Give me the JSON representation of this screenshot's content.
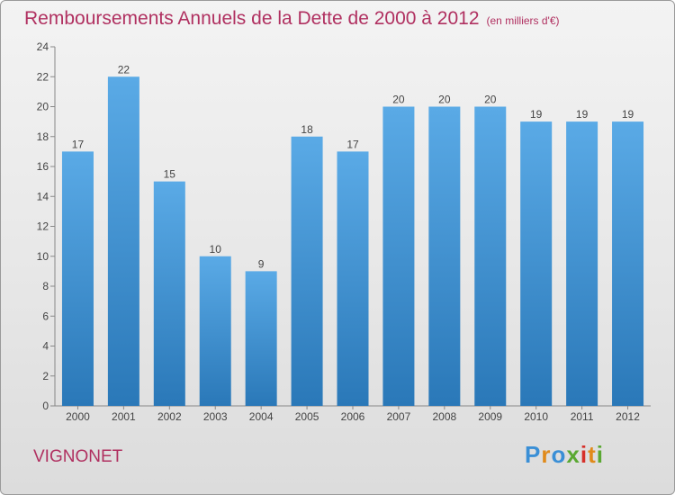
{
  "title": "Remboursements Annuels de la Dette de 2000 à 2012",
  "unit_note": "(en milliers d'€)",
  "town": "VIGNONET",
  "logo": {
    "text": "Proxiti",
    "colors": [
      "#3a8fd6",
      "#e08a1a",
      "#3a8fd6",
      "#5aa832",
      "#d6302a",
      "#e08a1a",
      "#5aa832"
    ]
  },
  "colors": {
    "bar_light": "#5aaae6",
    "bar_dark": "#2a78b8",
    "title": "#b03060"
  },
  "chart_data": {
    "type": "bar",
    "title": "Remboursements Annuels de la Dette de 2000 à 2012",
    "categories": [
      "2000",
      "2001",
      "2002",
      "2003",
      "2004",
      "2005",
      "2006",
      "2007",
      "2008",
      "2009",
      "2010",
      "2011",
      "2012"
    ],
    "values": [
      17,
      22,
      15,
      10,
      9,
      18,
      17,
      20,
      20,
      20,
      19,
      19,
      19
    ],
    "ylim": [
      0,
      24
    ],
    "yticks": [
      0,
      2,
      4,
      6,
      8,
      10,
      12,
      14,
      16,
      18,
      20,
      22,
      24
    ],
    "xlabel": "",
    "ylabel": "",
    "grid": false,
    "data_labels": true
  }
}
